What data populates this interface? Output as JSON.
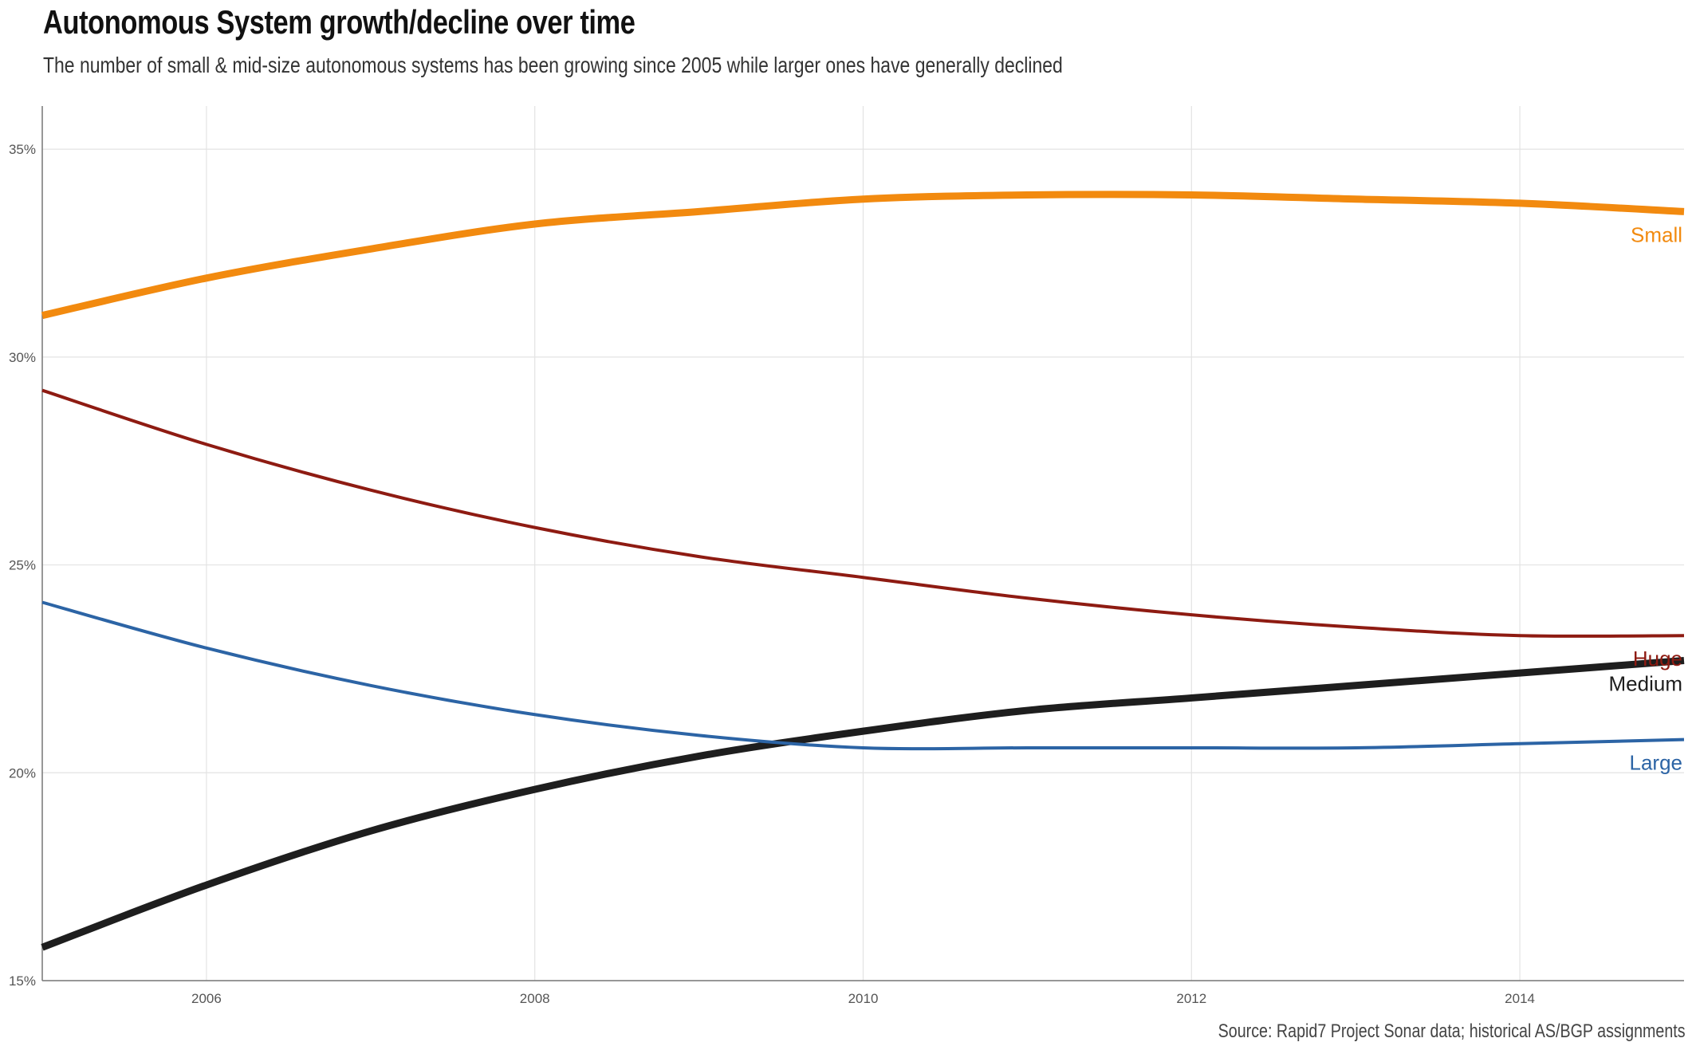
{
  "title": "Autonomous System growth/decline over time",
  "subtitle": "The number of small & mid-size autonomous systems has been growing since 2005 while larger ones have generally declined",
  "caption": "Source: Rapid7 Project Sonar data; historical AS/BGP assignments",
  "chart_data": {
    "type": "line",
    "xlim": [
      2005,
      2015
    ],
    "ylim": [
      15,
      36
    ],
    "x_ticks": [
      2006,
      2008,
      2010,
      2012,
      2014
    ],
    "x_tick_labels": [
      "2006",
      "2008",
      "2010",
      "2012",
      "2014"
    ],
    "y_ticks": [
      15,
      20,
      25,
      30,
      35
    ],
    "y_tick_labels": [
      "15%",
      "20%",
      "25%",
      "30%",
      "35%"
    ],
    "grid": true,
    "x": [
      2005,
      2006,
      2007,
      2008,
      2009,
      2010,
      2011,
      2012,
      2013,
      2014,
      2015
    ],
    "series": [
      {
        "name": "Small",
        "color": "#F28A0F",
        "stroke": 9,
        "values": [
          31.0,
          31.9,
          32.6,
          33.2,
          33.5,
          33.8,
          33.9,
          33.9,
          33.8,
          33.7,
          33.5
        ]
      },
      {
        "name": "Huge",
        "color": "#8E1B12",
        "stroke": 4,
        "values": [
          29.2,
          27.9,
          26.8,
          25.9,
          25.2,
          24.7,
          24.2,
          23.8,
          23.5,
          23.3,
          23.3
        ]
      },
      {
        "name": "Medium",
        "color": "#1E1E1E",
        "stroke": 9,
        "values": [
          15.8,
          17.3,
          18.6,
          19.6,
          20.4,
          21.0,
          21.5,
          21.8,
          22.1,
          22.4,
          22.7
        ]
      },
      {
        "name": "Large",
        "color": "#2C64A5",
        "stroke": 4,
        "values": [
          24.1,
          23.0,
          22.1,
          21.4,
          20.9,
          20.6,
          20.6,
          20.6,
          20.6,
          20.7,
          20.8
        ]
      }
    ]
  }
}
